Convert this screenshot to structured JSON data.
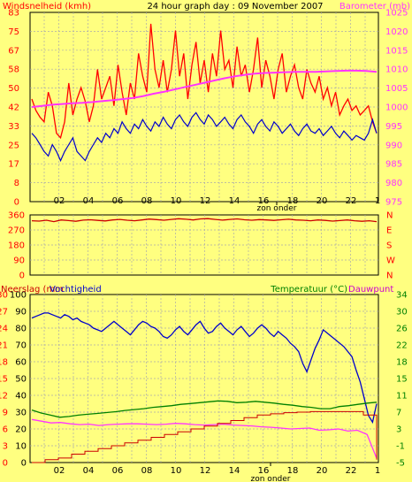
{
  "colors": {
    "background": "#ffff80",
    "wind": "#ff0000",
    "gust": "#0000cc",
    "barometer": "#ff33ff",
    "direction": "#cc0000",
    "humidity": "#0000cc",
    "temperature": "#008000",
    "dewpoint": "#ff33ff",
    "rain": "#cc0000",
    "grid": "#aaaaaa",
    "frame": "#000000",
    "green_label": "#008000",
    "purple_label": "#cc00cc"
  },
  "chart_data": [
    {
      "type": "line",
      "title": "24 hour graph day : 09 November 2007",
      "left_label": "Windsnelheid (kmh)",
      "right_label": "Barometer (mb)",
      "x_ticks": [
        "02",
        "04",
        "06",
        "08",
        "10",
        "12",
        "14",
        "16",
        "18",
        "20",
        "22",
        "1"
      ],
      "x_marker": "zon onder",
      "left_axis": {
        "ticks": [
          "0",
          "8",
          "17",
          "25",
          "33",
          "42",
          "50",
          "58",
          "67",
          "75",
          "83"
        ],
        "ylim": [
          0,
          83
        ]
      },
      "right_axis": {
        "ticks": [
          "975",
          "980",
          "985",
          "990",
          "995",
          "1000",
          "1005",
          "1010",
          "1015",
          "1020",
          "1025"
        ],
        "ylim": [
          975,
          1025
        ]
      },
      "series": [
        {
          "axis": "left",
          "values": [
            45,
            40,
            37,
            35,
            48,
            42,
            30,
            28,
            35,
            52,
            38,
            45,
            50,
            44,
            35,
            42,
            58,
            45,
            50,
            55,
            42,
            60,
            48,
            38,
            52,
            45,
            65,
            55,
            48,
            78,
            58,
            50,
            62,
            48,
            58,
            75,
            55,
            65,
            45,
            60,
            70,
            52,
            62,
            48,
            65,
            55,
            75,
            58,
            62,
            50,
            68,
            55,
            60,
            48,
            58,
            72,
            50,
            62,
            55,
            45,
            58,
            65,
            48,
            55,
            60,
            50,
            45,
            58,
            52,
            48,
            55,
            45,
            50,
            42,
            48,
            38,
            42,
            45,
            40,
            42,
            38,
            40,
            42,
            35,
            30
          ]
        },
        {
          "axis": "left",
          "values": [
            30,
            28,
            25,
            22,
            20,
            25,
            22,
            18,
            22,
            25,
            28,
            22,
            20,
            18,
            22,
            25,
            28,
            26,
            30,
            28,
            32,
            30,
            35,
            32,
            30,
            34,
            32,
            36,
            33,
            31,
            35,
            33,
            37,
            34,
            32,
            36,
            38,
            35,
            33,
            37,
            39,
            36,
            34,
            38,
            36,
            33,
            35,
            37,
            34,
            32,
            36,
            38,
            35,
            33,
            30,
            34,
            36,
            33,
            31,
            35,
            33,
            30,
            32,
            34,
            31,
            29,
            32,
            34,
            31,
            30,
            32,
            29,
            31,
            33,
            30,
            28,
            31,
            29,
            27,
            29,
            28,
            27,
            30,
            36,
            30
          ]
        },
        {
          "axis": "right",
          "values": [
            1000,
            1000.3,
            1000.6,
            1000.8,
            1001,
            1001.1,
            1001.3,
            1001.6,
            1001.8,
            1002.1,
            1002.4,
            1002.9,
            1003.5,
            1004,
            1004.6,
            1005.2,
            1005.8,
            1006.4,
            1007,
            1007.6,
            1008.1,
            1008.5,
            1008.8,
            1009,
            1009.1,
            1009.2,
            1009.3,
            1009.3,
            1009.3,
            1009.4,
            1009.5,
            1009.6,
            1009.6,
            1009.5,
            1009.3
          ]
        }
      ]
    },
    {
      "type": "line",
      "left_axis": {
        "ticks": [
          "0",
          "90",
          "180",
          "270",
          "360"
        ],
        "ylim": [
          0,
          360
        ]
      },
      "right_axis_labels": [
        "N",
        "W",
        "S",
        "E",
        "N"
      ],
      "x_ticks": [
        "02",
        "04",
        "06",
        "08",
        "10",
        "12",
        "14",
        "16",
        "18",
        "20",
        "22",
        "1"
      ],
      "series": [
        {
          "values": [
            325,
            323,
            328,
            320,
            330,
            326,
            322,
            329,
            331,
            327,
            324,
            330,
            333,
            328,
            325,
            330,
            335,
            332,
            328,
            333,
            337,
            334,
            330,
            336,
            338,
            333,
            329,
            333,
            336,
            331,
            328,
            332,
            330,
            327,
            331,
            334,
            330,
            328,
            325,
            330,
            327,
            323,
            326,
            330,
            325,
            322,
            325,
            320
          ]
        }
      ]
    },
    {
      "type": "line",
      "left_labels": [
        "Neerslag (mm",
        "Vochtigheid"
      ],
      "right_labels": [
        "Temperatuur (°C)",
        "Dauwpunt"
      ],
      "axis_rain": {
        "ticks": [
          "0",
          "3",
          "6",
          "9",
          "12",
          "15",
          "18",
          "21",
          "24",
          "27",
          "30"
        ],
        "ylim": [
          0,
          30
        ]
      },
      "axis_humidity": {
        "ticks": [
          "0",
          "10",
          "20",
          "30",
          "40",
          "50",
          "60",
          "70",
          "80",
          "90",
          "100"
        ],
        "ylim": [
          0,
          100
        ]
      },
      "axis_temperature": {
        "ticks": [
          "-5",
          "-1",
          "3",
          "7",
          "11",
          "15",
          "18",
          "22",
          "26",
          "30",
          "34"
        ],
        "ylim": [
          -5,
          34
        ]
      },
      "x_ticks": [
        "02",
        "04",
        "06",
        "08",
        "10",
        "12",
        "14",
        "16",
        "18",
        "20",
        "22",
        "1"
      ],
      "x_marker": "zon onder",
      "series": [
        {
          "axis": "humidity",
          "values": [
            86,
            87,
            88,
            89,
            89,
            88,
            87,
            86,
            88,
            87,
            85,
            86,
            84,
            83,
            82,
            80,
            79,
            78,
            80,
            82,
            84,
            82,
            80,
            78,
            76,
            79,
            82,
            84,
            83,
            81,
            80,
            78,
            75,
            74,
            76,
            79,
            81,
            78,
            76,
            79,
            82,
            84,
            80,
            77,
            78,
            81,
            83,
            80,
            78,
            76,
            79,
            81,
            78,
            75,
            77,
            80,
            82,
            80,
            77,
            75,
            78,
            76,
            74,
            71,
            69,
            66,
            59,
            54,
            61,
            68,
            73,
            79,
            77,
            75,
            73,
            71,
            69,
            66,
            63,
            55,
            48,
            38,
            28,
            24,
            35
          ]
        },
        {
          "axis": "temperature",
          "values": [
            7.2,
            6.5,
            6,
            5.5,
            5.7,
            6,
            6.2,
            6.4,
            6.6,
            6.8,
            7.1,
            7.3,
            7.5,
            7.8,
            8,
            8.2,
            8.5,
            8.7,
            8.9,
            9.1,
            9.3,
            9.2,
            8.9,
            9,
            9.2,
            9,
            8.8,
            8.5,
            8.3,
            8,
            7.8,
            7.5,
            7.5,
            8,
            8.2,
            8.5,
            8.8,
            9
          ]
        },
        {
          "axis": "temperature",
          "values": [
            5,
            4.6,
            4.2,
            4.3,
            4,
            3.8,
            3.9,
            3.6,
            3.8,
            3.9,
            4,
            4,
            3.9,
            3.8,
            3.9,
            4.1,
            4,
            3.8,
            3.7,
            3.8,
            3.9,
            3.7,
            3.6,
            3.5,
            3.3,
            3.2,
            3,
            2.8,
            2.9,
            3,
            2.5,
            2.6,
            2.8,
            2.3,
            2.5,
            1.5,
            -4
          ]
        },
        {
          "axis": "rain",
          "values": [
            0,
            0.5,
            0.8,
            1.5,
            2,
            2.5,
            3,
            3.5,
            4,
            4.5,
            5,
            5.5,
            6,
            6.5,
            7,
            7.5,
            8,
            8.5,
            8.7,
            8.9,
            9,
            9.1,
            9.1,
            9.1,
            9.1,
            8.5,
            0.5
          ]
        }
      ]
    }
  ]
}
